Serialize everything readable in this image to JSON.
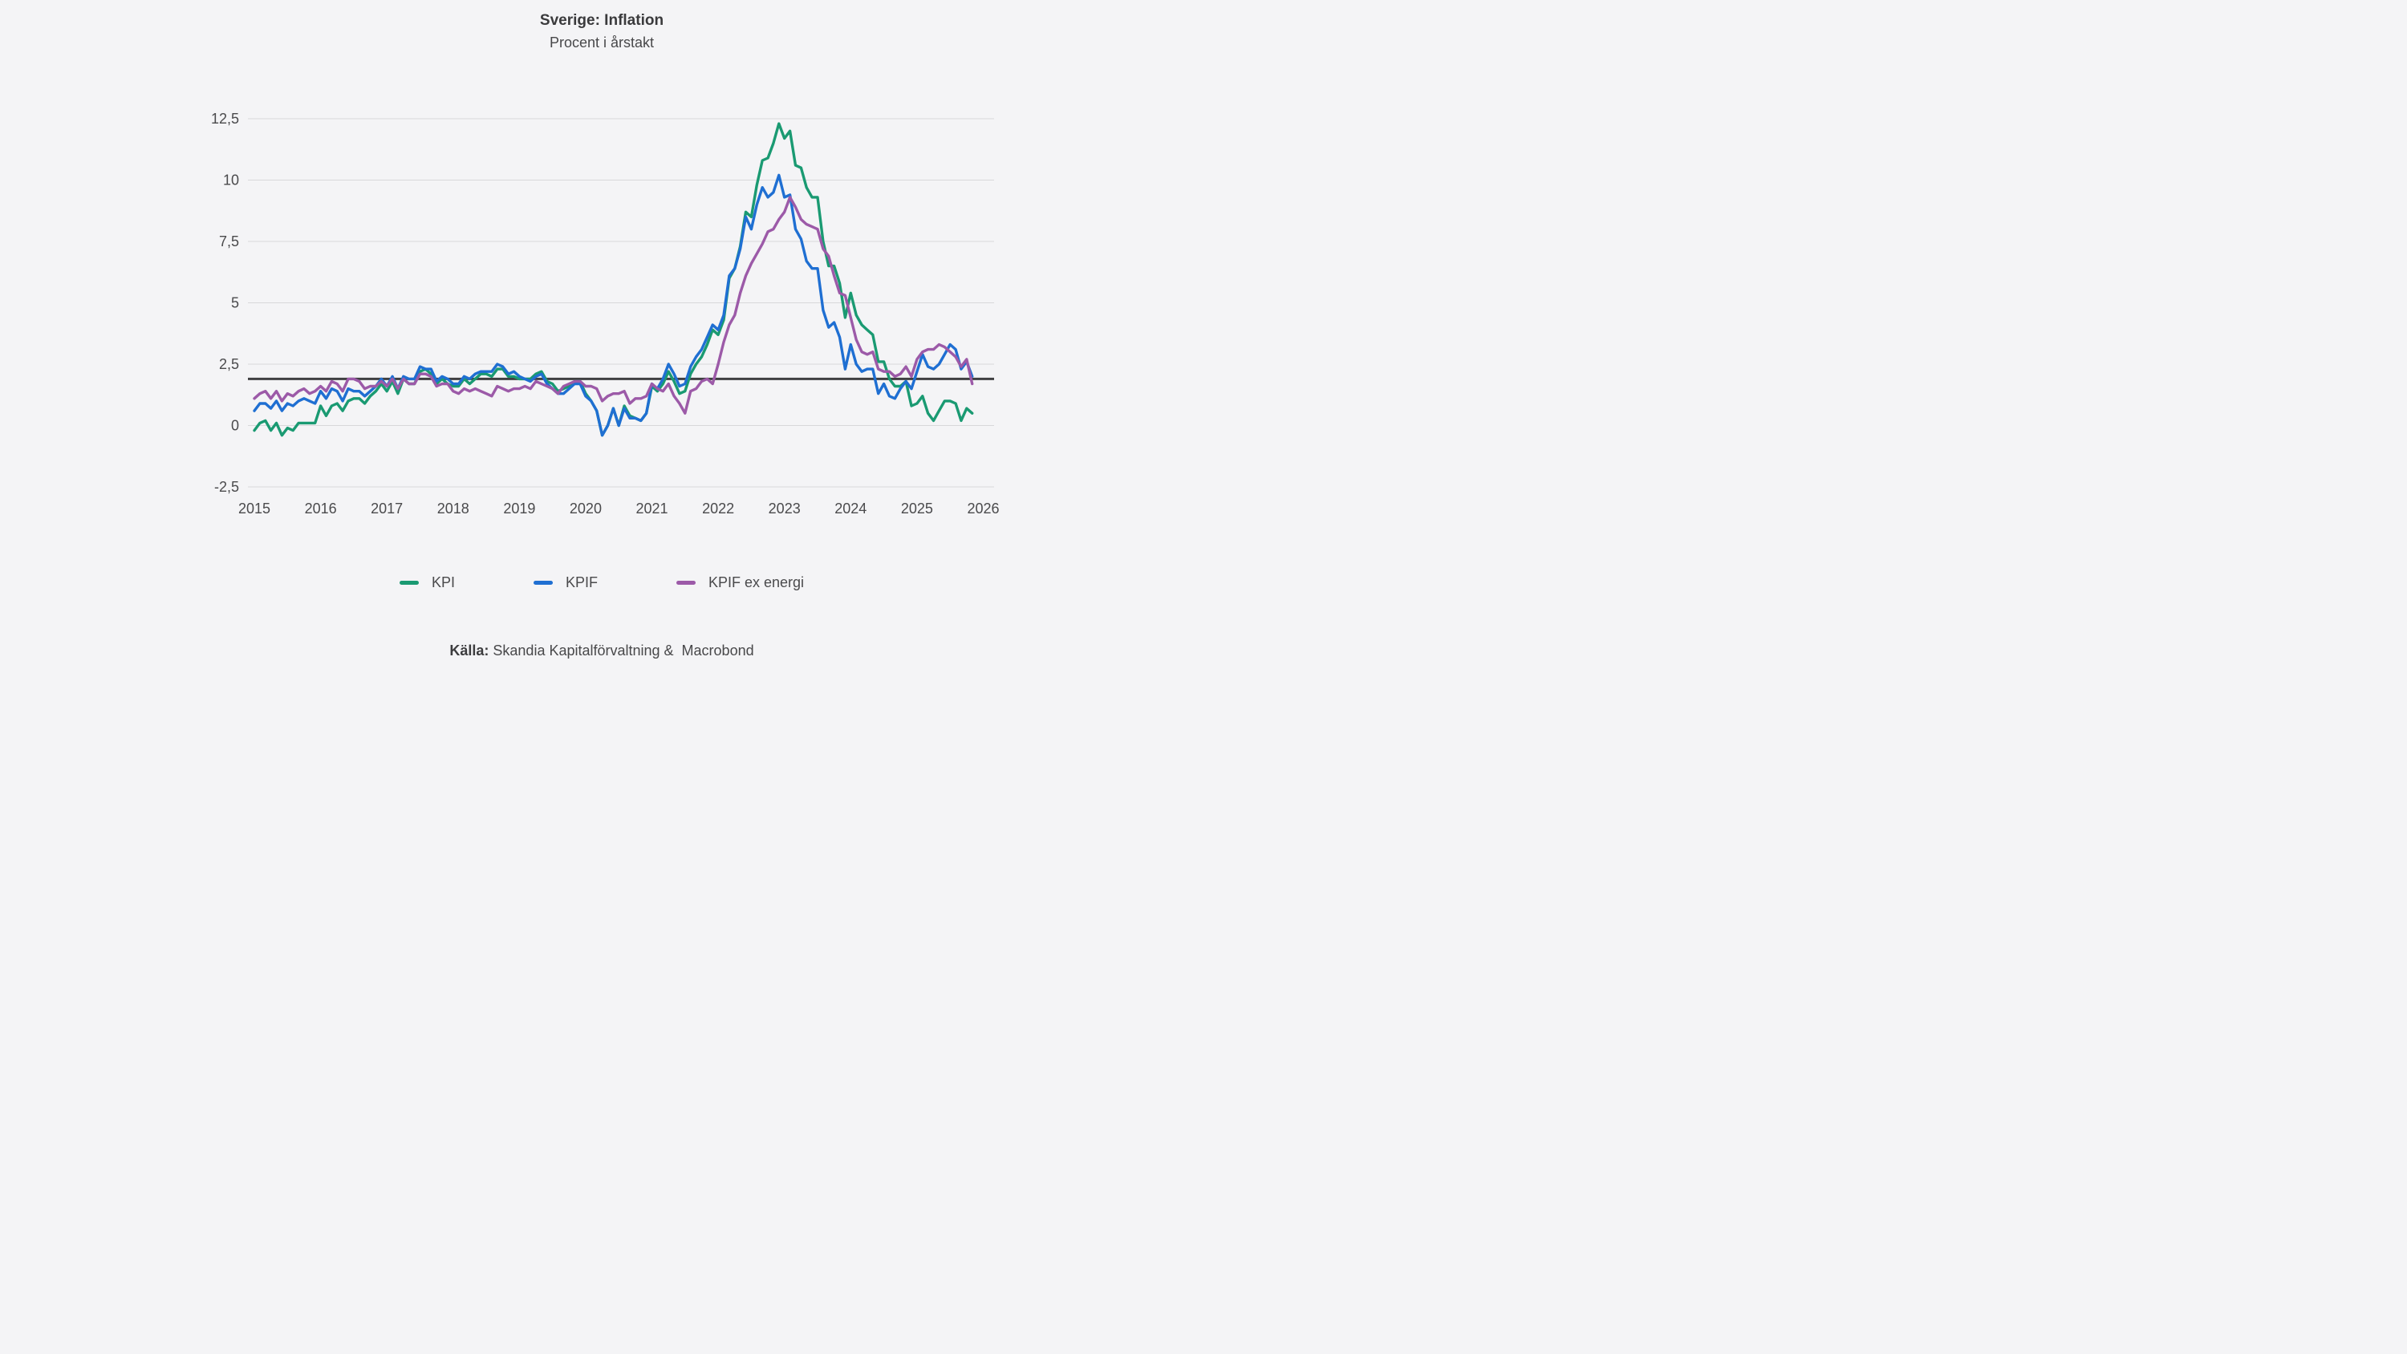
{
  "title": "Sverige: Inflation",
  "subtitle": "Procent i årstakt",
  "source": {
    "label": "Källa:",
    "text": " Skandia Kapitalförvaltning &  Macrobond"
  },
  "colors": {
    "background": "#f4f4f6",
    "gridline": "#d8d8da",
    "reference_line": "#3f3f41",
    "text": "#4a4a4c",
    "kpi": "#1a9a72",
    "kpif": "#1f6fd2",
    "kpif_ex_energi": "#9c5aa8"
  },
  "chart_data": {
    "type": "line",
    "title": "Sverige: Inflation",
    "subtitle": "Procent i årstakt",
    "frequency": "monthly",
    "x_start": "2015-01",
    "x_end": "2025-11",
    "n_points": 131,
    "grid": "horizontal",
    "legend_position": "bottom",
    "ylim": [
      -2.5,
      12.5
    ],
    "y_ticks": [
      12.5,
      10,
      7.5,
      5,
      2.5,
      0,
      -2.5
    ],
    "y_tick_labels": [
      "12,5",
      "10",
      "7,5",
      "5",
      "2,5",
      "0",
      "-2,5"
    ],
    "x_tick_labels": [
      "2015",
      "2016",
      "2017",
      "2018",
      "2019",
      "2020",
      "2021",
      "2022",
      "2023",
      "2024",
      "2025",
      "2026"
    ],
    "reference_line": {
      "value": 1.9,
      "color": "#3f3f41"
    },
    "series": [
      {
        "name": "KPI",
        "color": "#1a9a72",
        "values": [
          -0.2,
          0.1,
          0.2,
          -0.2,
          0.1,
          -0.4,
          -0.1,
          -0.2,
          0.1,
          0.1,
          0.1,
          0.1,
          0.8,
          0.4,
          0.8,
          0.9,
          0.6,
          1.0,
          1.1,
          1.1,
          0.9,
          1.2,
          1.4,
          1.7,
          1.4,
          1.8,
          1.3,
          1.9,
          1.7,
          1.7,
          2.2,
          2.3,
          2.1,
          1.7,
          1.9,
          1.7,
          1.6,
          1.6,
          1.9,
          1.7,
          1.9,
          2.1,
          2.1,
          2.0,
          2.3,
          2.3,
          2.0,
          2.0,
          1.9,
          1.9,
          1.9,
          2.1,
          2.2,
          1.8,
          1.7,
          1.4,
          1.5,
          1.6,
          1.8,
          1.8,
          1.3,
          1.0,
          0.6,
          -0.4,
          0.0,
          0.7,
          0.0,
          0.8,
          0.4,
          0.3,
          0.2,
          0.5,
          1.6,
          1.4,
          1.7,
          2.2,
          1.8,
          1.3,
          1.4,
          2.1,
          2.5,
          2.8,
          3.3,
          3.9,
          3.7,
          4.3,
          6.0,
          6.4,
          7.3,
          8.7,
          8.5,
          9.8,
          10.8,
          10.9,
          11.5,
          12.3,
          11.7,
          12.0,
          10.6,
          10.5,
          9.7,
          9.3,
          9.3,
          7.5,
          6.5,
          6.5,
          5.8,
          4.4,
          5.4,
          4.5,
          4.1,
          3.9,
          3.7,
          2.6,
          2.6,
          1.9,
          1.6,
          1.6,
          1.8,
          0.8,
          0.9,
          1.2,
          0.5,
          0.2,
          0.6,
          1.0,
          1.0,
          0.9,
          0.2,
          0.7,
          0.5
        ]
      },
      {
        "name": "KPIF",
        "color": "#1f6fd2",
        "values": [
          0.6,
          0.9,
          0.9,
          0.7,
          1.0,
          0.6,
          0.9,
          0.8,
          1.0,
          1.1,
          1.0,
          0.9,
          1.4,
          1.1,
          1.5,
          1.4,
          1.0,
          1.5,
          1.4,
          1.4,
          1.2,
          1.4,
          1.6,
          1.9,
          1.6,
          2.0,
          1.5,
          2.0,
          1.9,
          1.9,
          2.4,
          2.3,
          2.3,
          1.8,
          2.0,
          1.9,
          1.7,
          1.7,
          2.0,
          1.9,
          2.1,
          2.2,
          2.2,
          2.2,
          2.5,
          2.4,
          2.1,
          2.2,
          2.0,
          1.9,
          1.8,
          2.0,
          2.1,
          1.7,
          1.5,
          1.3,
          1.3,
          1.5,
          1.7,
          1.7,
          1.2,
          1.0,
          0.6,
          -0.4,
          0.0,
          0.7,
          0.0,
          0.7,
          0.3,
          0.3,
          0.2,
          0.5,
          1.7,
          1.5,
          1.9,
          2.5,
          2.1,
          1.6,
          1.7,
          2.4,
          2.8,
          3.1,
          3.6,
          4.1,
          3.9,
          4.5,
          6.1,
          6.4,
          7.2,
          8.5,
          8.0,
          9.0,
          9.7,
          9.3,
          9.5,
          10.2,
          9.3,
          9.4,
          8.0,
          7.6,
          6.7,
          6.4,
          6.4,
          4.7,
          4.0,
          4.2,
          3.6,
          2.3,
          3.3,
          2.5,
          2.2,
          2.3,
          2.3,
          1.3,
          1.7,
          1.2,
          1.1,
          1.5,
          1.8,
          1.5,
          2.2,
          2.9,
          2.4,
          2.3,
          2.5,
          2.9,
          3.3,
          3.1,
          2.3,
          2.6,
          2.0
        ]
      },
      {
        "name": "KPIF ex energi",
        "color": "#9c5aa8",
        "values": [
          1.1,
          1.3,
          1.4,
          1.1,
          1.4,
          1.0,
          1.3,
          1.2,
          1.4,
          1.5,
          1.3,
          1.4,
          1.6,
          1.4,
          1.8,
          1.7,
          1.4,
          1.9,
          1.9,
          1.8,
          1.5,
          1.6,
          1.6,
          1.8,
          1.6,
          1.9,
          1.5,
          1.9,
          1.7,
          1.7,
          2.1,
          2.1,
          2.0,
          1.6,
          1.7,
          1.7,
          1.4,
          1.3,
          1.5,
          1.4,
          1.5,
          1.4,
          1.3,
          1.2,
          1.6,
          1.5,
          1.4,
          1.5,
          1.5,
          1.6,
          1.5,
          1.8,
          1.7,
          1.6,
          1.5,
          1.3,
          1.6,
          1.7,
          1.8,
          1.8,
          1.6,
          1.6,
          1.5,
          1.0,
          1.2,
          1.3,
          1.3,
          1.4,
          0.9,
          1.1,
          1.1,
          1.2,
          1.7,
          1.5,
          1.4,
          1.7,
          1.2,
          0.9,
          0.5,
          1.4,
          1.5,
          1.8,
          1.9,
          1.7,
          2.5,
          3.4,
          4.1,
          4.5,
          5.4,
          6.1,
          6.6,
          7.0,
          7.4,
          7.9,
          8.0,
          8.4,
          8.7,
          9.3,
          8.9,
          8.4,
          8.2,
          8.1,
          8.0,
          7.2,
          6.9,
          6.1,
          5.4,
          5.3,
          4.4,
          3.5,
          3.0,
          2.9,
          3.0,
          2.3,
          2.2,
          2.2,
          2.0,
          2.1,
          2.4,
          2.0,
          2.7,
          3.0,
          3.1,
          3.1,
          3.3,
          3.2,
          3.0,
          2.8,
          2.4,
          2.7,
          1.7
        ]
      }
    ]
  }
}
